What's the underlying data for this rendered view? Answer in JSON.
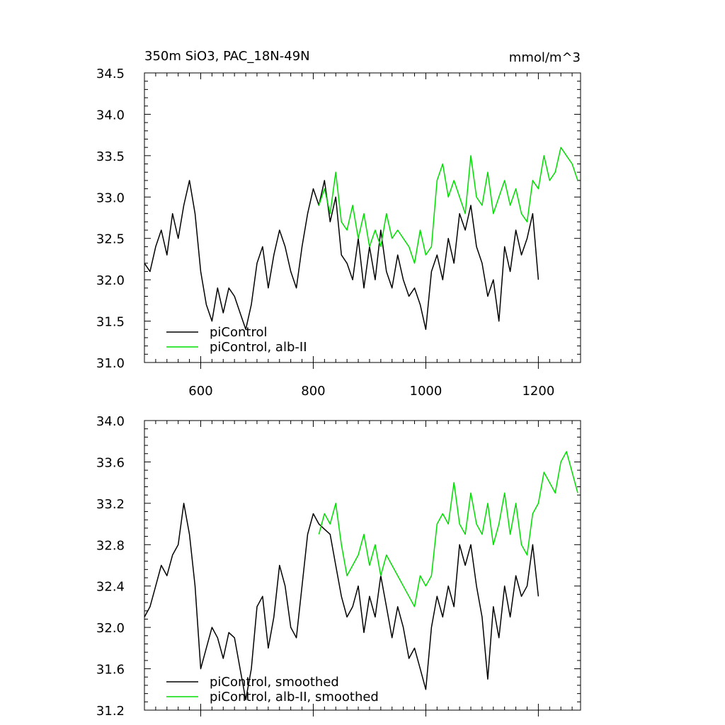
{
  "figure": {
    "title": "350m SiO3, PAC_18N-49N",
    "units": "mmol/m^3"
  },
  "chart_data": [
    {
      "type": "line",
      "panel": "top",
      "title": "350m SiO3, PAC_18N-49N",
      "units_label": "mmol/m^3",
      "xlabel": "",
      "ylabel": "",
      "xlim": [
        500,
        1275
      ],
      "ylim": [
        31.0,
        34.5
      ],
      "x_ticks": [
        600,
        800,
        1000,
        1200
      ],
      "x_tick_labels": [
        "600",
        "800",
        "1000",
        "1200"
      ],
      "y_ticks": [
        31.0,
        31.5,
        32.0,
        32.5,
        33.0,
        33.5,
        34.0,
        34.5
      ],
      "y_tick_labels": [
        "31.0",
        "31.5",
        "32.0",
        "32.5",
        "33.0",
        "33.5",
        "34.0",
        "34.5"
      ],
      "grid": false,
      "legend_position": "bottom-left",
      "series": [
        {
          "name": "piControl",
          "color": "#000000",
          "x": [
            500,
            510,
            520,
            530,
            540,
            550,
            560,
            570,
            580,
            590,
            600,
            610,
            620,
            630,
            640,
            650,
            660,
            670,
            680,
            690,
            700,
            710,
            720,
            730,
            740,
            750,
            760,
            770,
            780,
            790,
            800,
            810,
            820,
            830,
            840,
            850,
            860,
            870,
            880,
            890,
            900,
            910,
            920,
            930,
            940,
            950,
            960,
            970,
            980,
            990,
            1000,
            1010,
            1020,
            1030,
            1040,
            1050,
            1060,
            1070,
            1080,
            1090,
            1100,
            1110,
            1120,
            1130,
            1140,
            1150,
            1160,
            1170,
            1180,
            1190,
            1200
          ],
          "y": [
            32.2,
            32.1,
            32.4,
            32.6,
            32.3,
            32.8,
            32.5,
            32.9,
            33.2,
            32.8,
            32.1,
            31.7,
            31.5,
            31.9,
            31.6,
            31.9,
            31.8,
            31.6,
            31.4,
            31.7,
            32.2,
            32.4,
            31.9,
            32.3,
            32.6,
            32.4,
            32.1,
            31.9,
            32.4,
            32.8,
            33.1,
            32.9,
            33.2,
            32.7,
            33.0,
            32.3,
            32.2,
            32.0,
            32.5,
            31.9,
            32.4,
            32.0,
            32.6,
            32.1,
            31.9,
            32.3,
            32.0,
            31.8,
            31.9,
            31.7,
            31.4,
            32.1,
            32.3,
            32.0,
            32.5,
            32.2,
            32.8,
            32.6,
            32.9,
            32.4,
            32.2,
            31.8,
            32.0,
            31.5,
            32.4,
            32.1,
            32.6,
            32.3,
            32.5,
            32.8,
            32.0
          ]
        },
        {
          "name": "piControl, alb-II",
          "color": "#00dd00",
          "x": [
            810,
            820,
            830,
            840,
            850,
            860,
            870,
            880,
            890,
            900,
            910,
            920,
            930,
            940,
            950,
            960,
            970,
            980,
            990,
            1000,
            1010,
            1020,
            1030,
            1040,
            1050,
            1060,
            1070,
            1080,
            1090,
            1100,
            1110,
            1120,
            1130,
            1140,
            1150,
            1160,
            1170,
            1180,
            1190,
            1200,
            1210,
            1220,
            1230,
            1240,
            1250,
            1260,
            1270
          ],
          "y": [
            32.9,
            33.1,
            32.8,
            33.3,
            32.7,
            32.6,
            32.9,
            32.5,
            32.8,
            32.4,
            32.6,
            32.4,
            32.8,
            32.5,
            32.6,
            32.5,
            32.4,
            32.2,
            32.6,
            32.3,
            32.4,
            33.2,
            33.4,
            33.0,
            33.2,
            33.0,
            32.8,
            33.5,
            33.0,
            32.9,
            33.3,
            32.8,
            33.0,
            33.2,
            32.9,
            33.1,
            32.8,
            32.7,
            33.2,
            33.1,
            33.5,
            33.2,
            33.3,
            33.6,
            33.5,
            33.4,
            33.2
          ]
        }
      ]
    },
    {
      "type": "line",
      "panel": "bottom",
      "title": "",
      "xlabel": "",
      "ylabel": "",
      "xlim": [
        500,
        1275
      ],
      "ylim": [
        31.2,
        34.0
      ],
      "x_ticks": [
        600,
        800,
        1000,
        1200
      ],
      "x_tick_labels": [],
      "y_ticks": [
        31.2,
        31.6,
        32.0,
        32.4,
        32.8,
        33.2,
        33.6,
        34.0
      ],
      "y_tick_labels": [
        "31.2",
        "31.6",
        "32.0",
        "32.4",
        "32.8",
        "33.2",
        "33.6",
        "34.0"
      ],
      "grid": false,
      "legend_position": "bottom-left",
      "series": [
        {
          "name": "piControl, smoothed",
          "color": "#000000",
          "x": [
            500,
            510,
            520,
            530,
            540,
            550,
            560,
            570,
            580,
            590,
            600,
            610,
            620,
            630,
            640,
            650,
            660,
            670,
            680,
            690,
            700,
            710,
            720,
            730,
            740,
            750,
            760,
            770,
            780,
            790,
            800,
            810,
            820,
            830,
            840,
            850,
            860,
            870,
            880,
            890,
            900,
            910,
            920,
            930,
            940,
            950,
            960,
            970,
            980,
            990,
            1000,
            1010,
            1020,
            1030,
            1040,
            1050,
            1060,
            1070,
            1080,
            1090,
            1100,
            1110,
            1120,
            1130,
            1140,
            1150,
            1160,
            1170,
            1180,
            1190,
            1200
          ],
          "y": [
            32.1,
            32.2,
            32.4,
            32.6,
            32.5,
            32.7,
            32.8,
            33.2,
            32.9,
            32.4,
            31.6,
            31.8,
            32.0,
            31.9,
            31.7,
            31.95,
            31.9,
            31.6,
            31.3,
            31.6,
            32.2,
            32.3,
            31.8,
            32.1,
            32.6,
            32.4,
            32.0,
            31.9,
            32.4,
            32.9,
            33.1,
            33.0,
            32.95,
            32.9,
            32.6,
            32.3,
            32.1,
            32.2,
            32.4,
            31.95,
            32.3,
            32.1,
            32.5,
            32.2,
            31.9,
            32.2,
            32.0,
            31.7,
            31.8,
            31.6,
            31.4,
            32.0,
            32.3,
            32.1,
            32.4,
            32.2,
            32.8,
            32.6,
            32.8,
            32.4,
            32.1,
            31.5,
            32.2,
            31.9,
            32.4,
            32.1,
            32.5,
            32.3,
            32.4,
            32.8,
            32.3
          ]
        },
        {
          "name": "piControl, alb-II, smoothed",
          "color": "#00dd00",
          "x": [
            810,
            820,
            830,
            840,
            850,
            860,
            870,
            880,
            890,
            900,
            910,
            920,
            930,
            940,
            950,
            960,
            970,
            980,
            990,
            1000,
            1010,
            1020,
            1030,
            1040,
            1050,
            1060,
            1070,
            1080,
            1090,
            1100,
            1110,
            1120,
            1130,
            1140,
            1150,
            1160,
            1170,
            1180,
            1190,
            1200,
            1210,
            1220,
            1230,
            1240,
            1250,
            1260,
            1270
          ],
          "y": [
            32.9,
            33.1,
            33.0,
            33.2,
            32.8,
            32.5,
            32.6,
            32.7,
            32.9,
            32.6,
            32.8,
            32.5,
            32.7,
            32.6,
            32.5,
            32.4,
            32.3,
            32.2,
            32.5,
            32.4,
            32.5,
            33.0,
            33.1,
            33.0,
            33.4,
            33.0,
            32.9,
            33.3,
            33.0,
            32.9,
            33.2,
            32.8,
            33.0,
            33.3,
            32.9,
            33.2,
            32.8,
            32.7,
            33.1,
            33.2,
            33.5,
            33.4,
            33.3,
            33.6,
            33.7,
            33.5,
            33.3
          ]
        }
      ]
    }
  ]
}
